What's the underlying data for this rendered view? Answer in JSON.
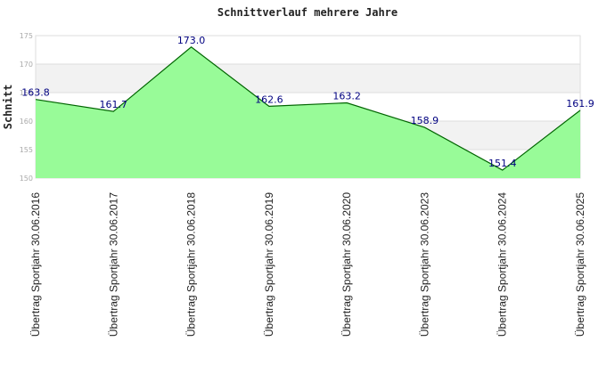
{
  "chart_data": {
    "type": "area",
    "title": "Schnittverlauf mehrere Jahre",
    "ylabel": "Schnitt",
    "xlabel": "",
    "categories": [
      "Übertrag Sportjahr 30.06.2016",
      "Übertrag Sportjahr 30.06.2017",
      "Übertrag Sportjahr 30.06.2018",
      "Übertrag Sportjahr 30.06.2019",
      "Übertrag Sportjahr 30.06.2020",
      "Übertrag Sportjahr 30.06.2023",
      "Übertrag Sportjahr 30.06.2024",
      "Übertrag Sportjahr 30.06.2025"
    ],
    "values": [
      163.8,
      161.7,
      173.0,
      162.6,
      163.2,
      158.9,
      151.4,
      161.9
    ],
    "data_labels": [
      "163.8",
      "161.7",
      "173.0",
      "162.6",
      "163.2",
      "158.9",
      "151.4",
      "161.9"
    ],
    "ylim": [
      150,
      175
    ],
    "yticks": [
      150,
      155,
      160,
      165,
      170,
      175
    ],
    "ytick_labels": [
      "150",
      "155",
      "160",
      "165",
      "170",
      "175"
    ],
    "grid": true,
    "colors": {
      "fill": "#98fb98",
      "line": "#006400",
      "label": "#000080",
      "band": "#f2f2f2",
      "gridline": "#dddddd"
    }
  }
}
